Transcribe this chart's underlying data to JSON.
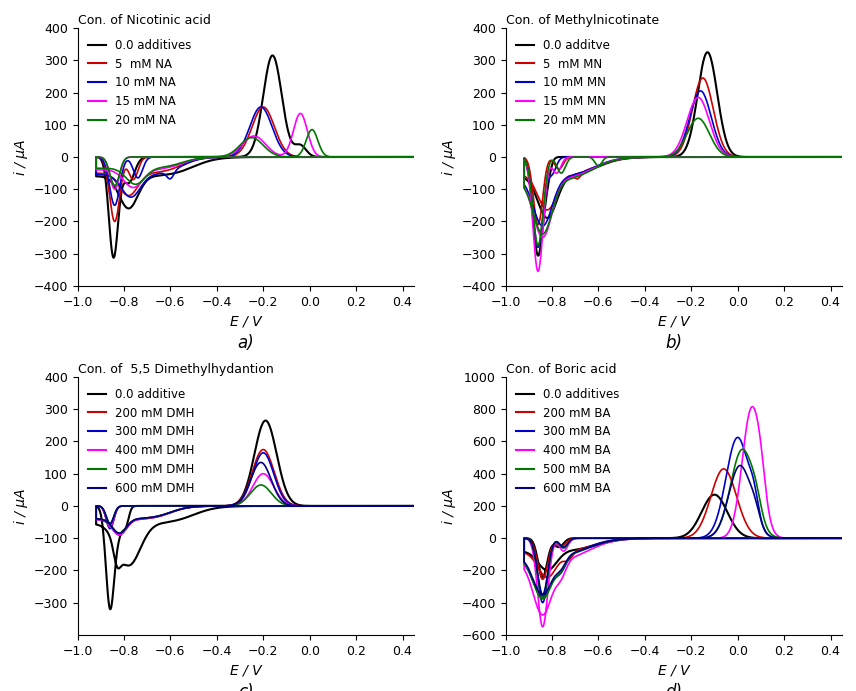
{
  "subplot_a": {
    "title": "Con. of Nicotinic acid",
    "xlabel": "E / V",
    "ylabel": "i / μA",
    "ylim": [
      -400,
      400
    ],
    "xlim": [
      -1.0,
      0.45
    ],
    "yticks": [
      -400,
      -300,
      -200,
      -100,
      0,
      100,
      200,
      300,
      400
    ],
    "legend": [
      "0.0 additives",
      "5  mM NA",
      "10 mM NA",
      "15 mM NA",
      "20 mM NA"
    ],
    "colors": [
      "#000000",
      "#cc0000",
      "#0000cc",
      "#ff00ff",
      "#007700"
    ],
    "label": "a)"
  },
  "subplot_b": {
    "title": "Con. of Methylnicotinate",
    "xlabel": "E / V",
    "ylabel": "i / μA",
    "ylim": [
      -400,
      400
    ],
    "xlim": [
      -1.0,
      0.45
    ],
    "yticks": [
      -400,
      -300,
      -200,
      -100,
      0,
      100,
      200,
      300,
      400
    ],
    "legend": [
      "0.0 additve",
      "5  mM MN",
      "10 mM MN",
      "15 mM MN",
      "20 mM MN"
    ],
    "colors": [
      "#000000",
      "#cc0000",
      "#0000cc",
      "#ff00ff",
      "#007700"
    ],
    "label": "b)"
  },
  "subplot_c": {
    "title": "Con. of  5,5 Dimethylhydantion",
    "xlabel": "E / V",
    "ylabel": "i / μA",
    "ylim": [
      -400,
      400
    ],
    "xlim": [
      -1.0,
      0.45
    ],
    "yticks": [
      -300,
      -200,
      -100,
      0,
      100,
      200,
      300,
      400
    ],
    "legend": [
      "0.0 additive",
      "200 mM DMH",
      "300 mM DMH",
      "400 mM DMH",
      "500 mM DMH",
      "600 mM DMH"
    ],
    "colors": [
      "#000000",
      "#cc0000",
      "#0000cc",
      "#ff00ff",
      "#007700",
      "#000080"
    ],
    "label": "c)"
  },
  "subplot_d": {
    "title": "Con. of Boric acid",
    "xlabel": "E / V",
    "ylabel": "i / μA",
    "ylim": [
      -600,
      1000
    ],
    "xlim": [
      -1.0,
      0.45
    ],
    "yticks": [
      -600,
      -400,
      -200,
      0,
      200,
      400,
      600,
      800,
      1000
    ],
    "legend": [
      "0.0 additives",
      "200 mM BA",
      "300 mM BA",
      "400 mM BA",
      "500 mM BA",
      "600 mM BA"
    ],
    "colors": [
      "#000000",
      "#cc0000",
      "#0000cc",
      "#ff00ff",
      "#007700",
      "#000080"
    ],
    "label": "d)"
  },
  "fig_bgcolor": "#ffffff",
  "axes_bgcolor": "#ffffff",
  "tick_fontsize": 9,
  "label_fontsize": 10,
  "title_fontsize": 9,
  "legend_fontsize": 8.5,
  "lw": 1.2
}
